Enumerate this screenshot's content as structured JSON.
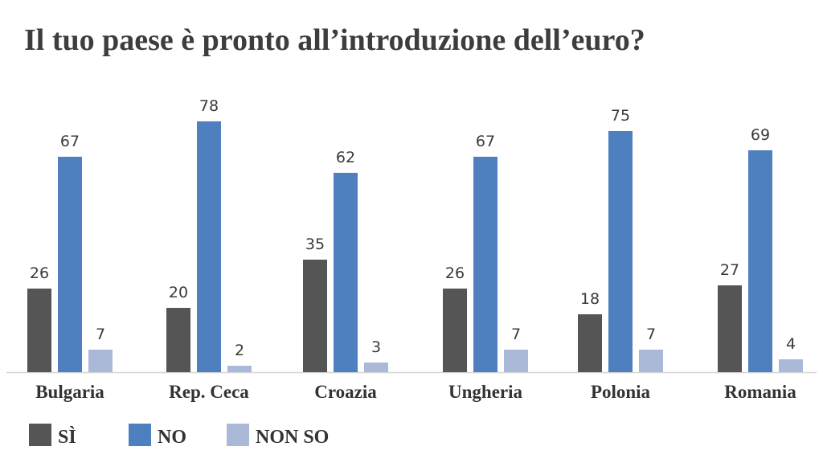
{
  "chart_data": {
    "type": "bar",
    "title": "Il tuo paese è pronto all’introduzione dell’euro?",
    "categories": [
      "Bulgaria",
      "Rep. Ceca",
      "Croazia",
      "Ungheria",
      "Polonia",
      "Romania"
    ],
    "series": [
      {
        "name": "SÌ",
        "color": "#555555",
        "values": [
          26,
          20,
          35,
          26,
          18,
          27
        ]
      },
      {
        "name": "NO",
        "color": "#4e7fbe",
        "values": [
          67,
          78,
          62,
          67,
          75,
          69
        ]
      },
      {
        "name": "NON SO",
        "color": "#abb9d9",
        "values": [
          7,
          2,
          3,
          7,
          7,
          4
        ]
      }
    ],
    "ylim": [
      0,
      85
    ],
    "grid": false,
    "legend_position": "bottom-left",
    "xlabel": "",
    "ylabel": ""
  }
}
